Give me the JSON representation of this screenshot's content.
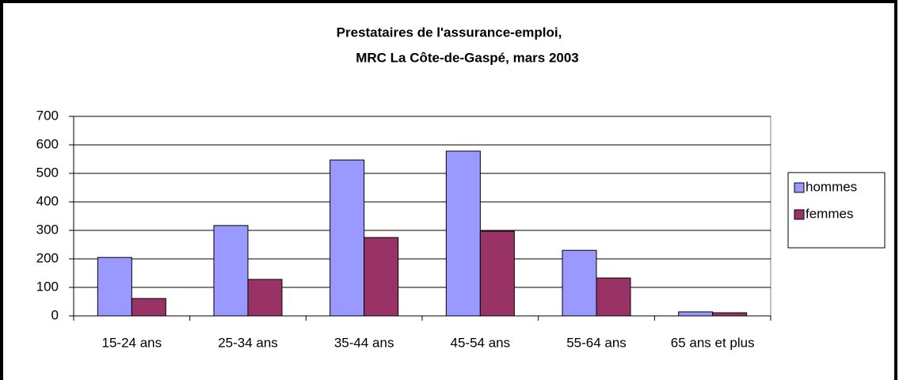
{
  "chart_data": {
    "type": "bar",
    "title": [
      "Prestataires de l'assurance-emploi,",
      "MRC La Côte-de-Gaspé, mars 2003"
    ],
    "categories": [
      "15-24 ans",
      "25-34 ans",
      "35-44 ans",
      "45-54 ans",
      "55-64 ans",
      "65 ans et plus"
    ],
    "series": [
      {
        "name": "hommes",
        "color": "#9999ff",
        "values": [
          205,
          317,
          547,
          578,
          230,
          14
        ]
      },
      {
        "name": "femmes",
        "color": "#993366",
        "values": [
          61,
          128,
          275,
          297,
          133,
          11
        ]
      }
    ],
    "ylim": [
      0,
      700
    ],
    "yticks": [
      0,
      100,
      200,
      300,
      400,
      500,
      600,
      700
    ],
    "grid": true,
    "legend": "right"
  }
}
